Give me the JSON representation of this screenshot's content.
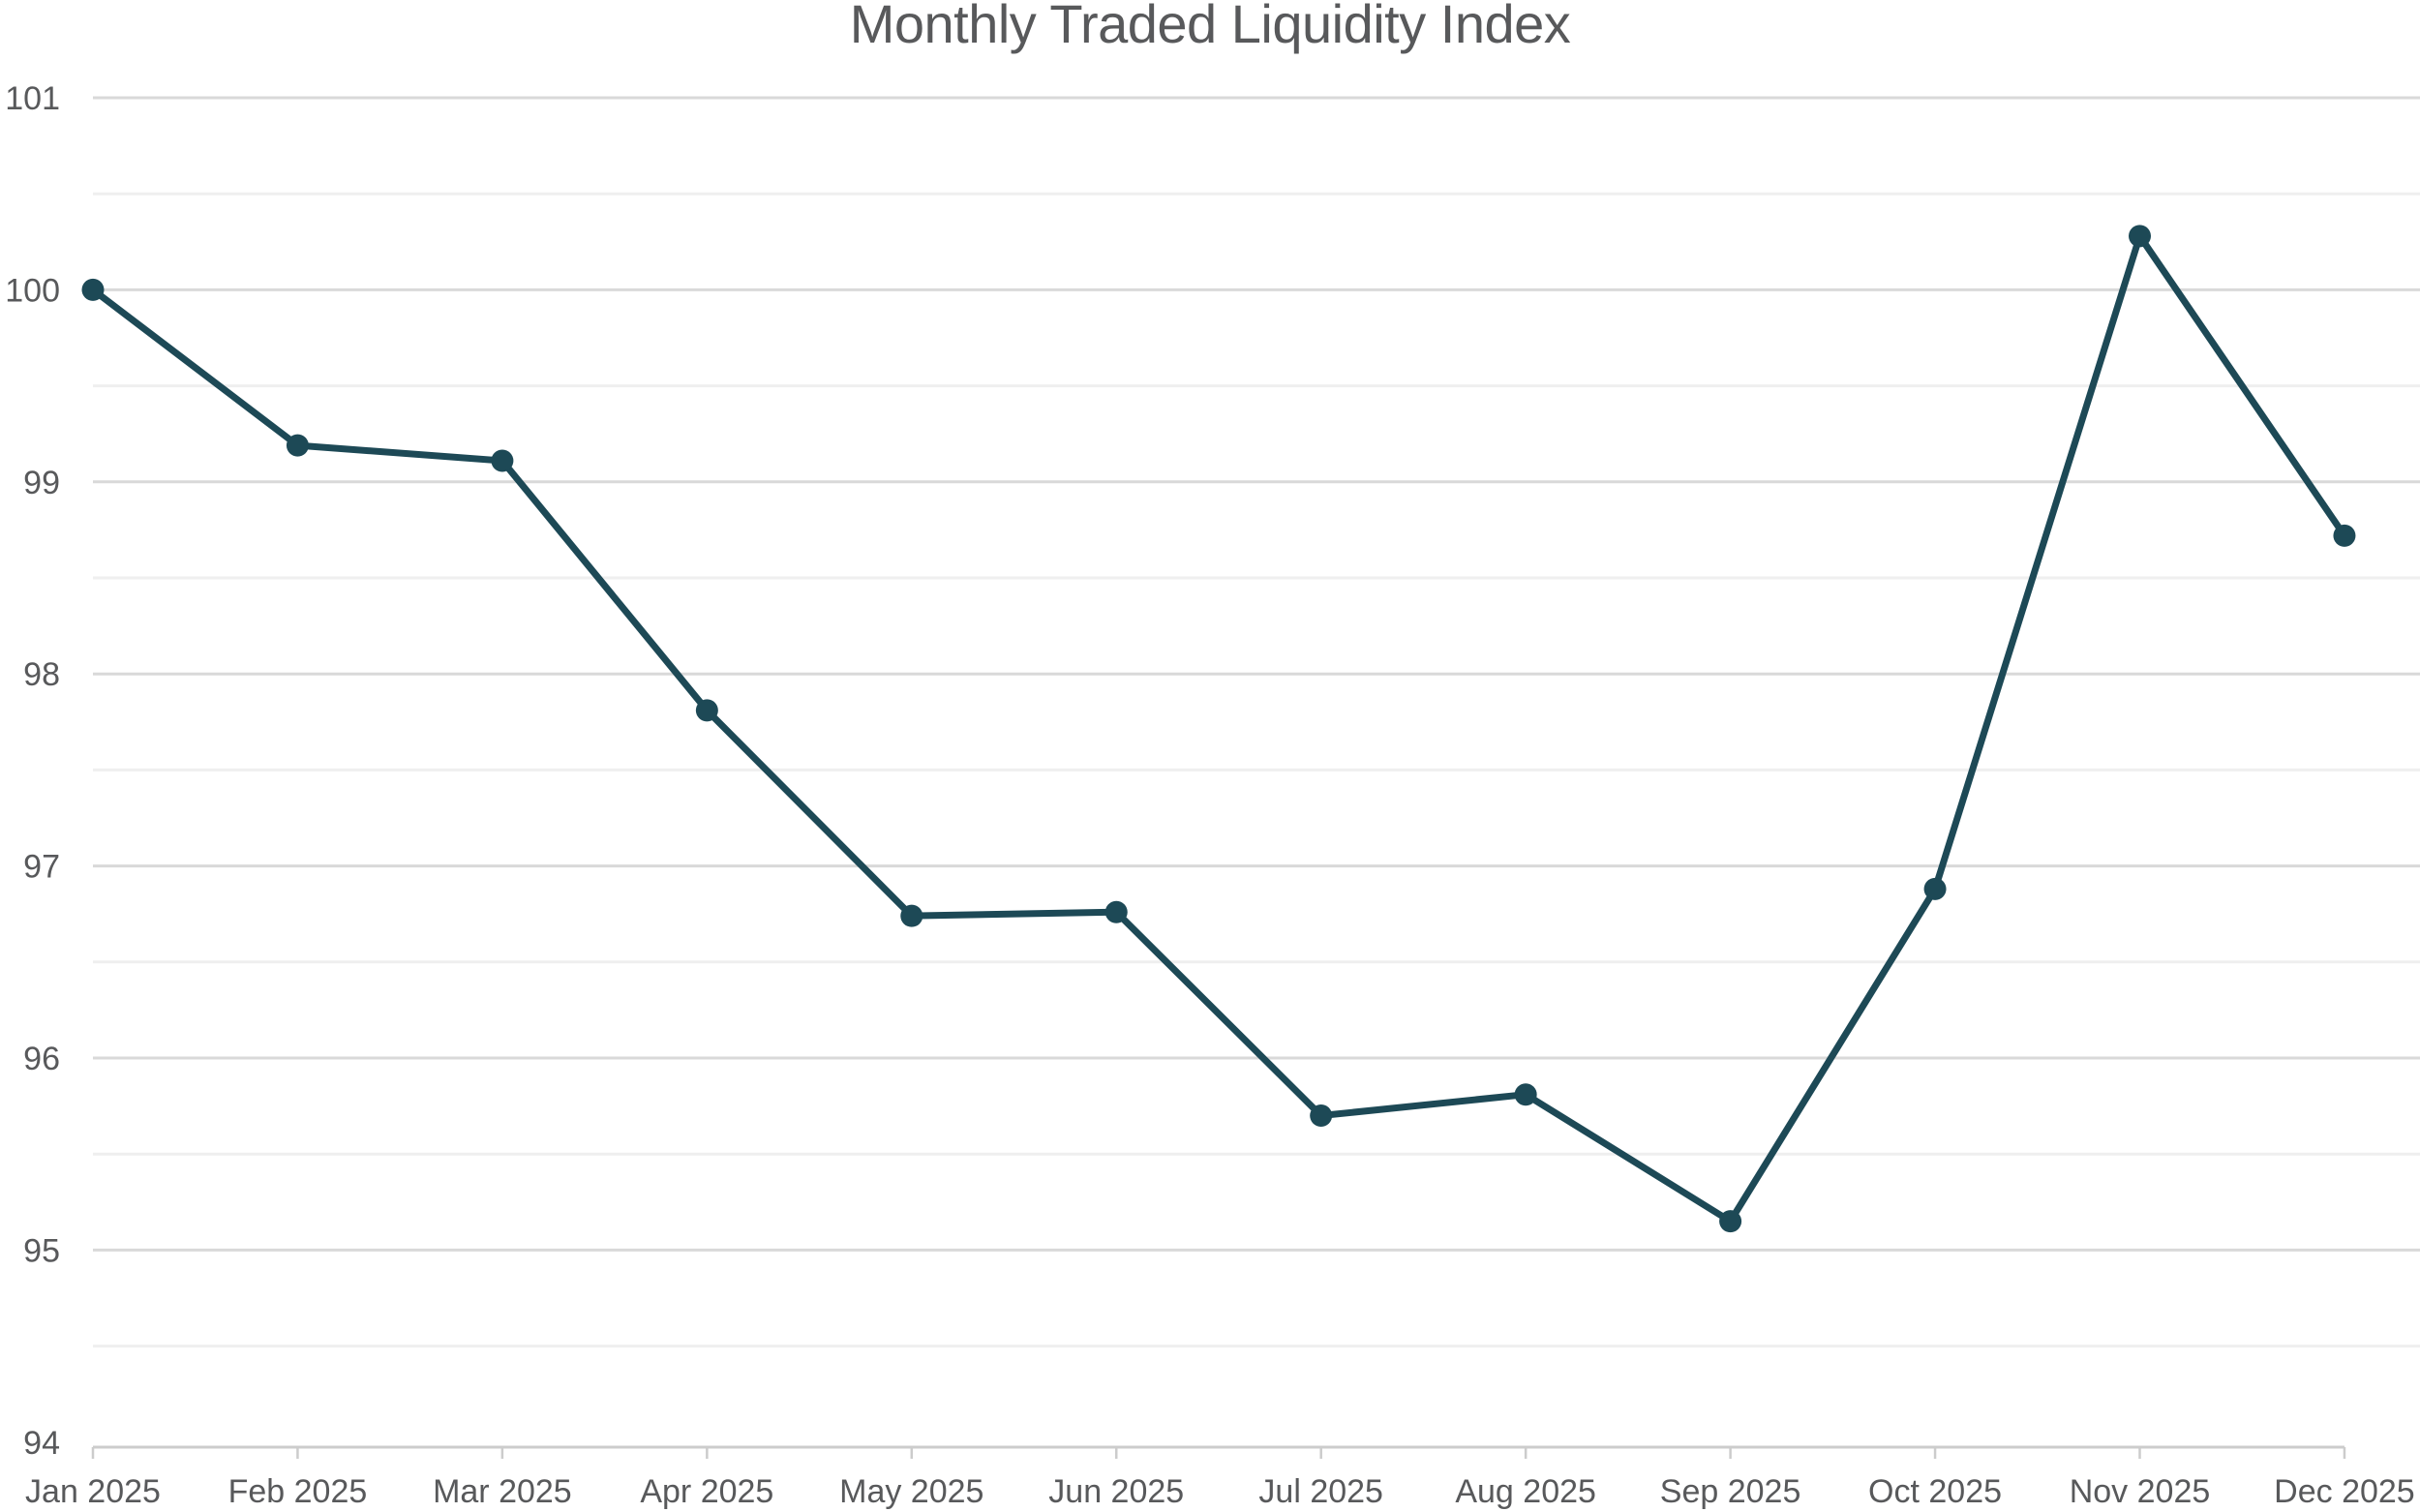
{
  "chart_data": {
    "type": "line",
    "title": "Monthly Traded Liquidity Index",
    "categories": [
      "Jan 2025",
      "Feb 2025",
      "Mar 2025",
      "Apr 2025",
      "May 2025",
      "Jun 2025",
      "Jul 2025",
      "Aug 2025",
      "Sep 2025",
      "Oct 2025",
      "Nov 2025",
      "Dec 2025"
    ],
    "values": [
      100.0,
      99.19,
      99.11,
      97.81,
      96.74,
      96.76,
      95.7,
      95.81,
      95.15,
      96.88,
      100.28,
      98.72
    ],
    "xlabel": "",
    "ylabel": "",
    "ylim": [
      94,
      101
    ],
    "y_major_ticks": [
      101,
      100,
      99,
      98,
      97,
      96,
      95,
      94
    ],
    "y_minor_step": 0.5,
    "grid": true,
    "legend_position": "none",
    "marker": "circle",
    "colors": {
      "line": "#1d4956",
      "marker": "#1d4956",
      "major_grid": "#d9d9d9",
      "minor_grid": "#efefef",
      "axis": "#cccccc",
      "text": "#58595b"
    }
  }
}
